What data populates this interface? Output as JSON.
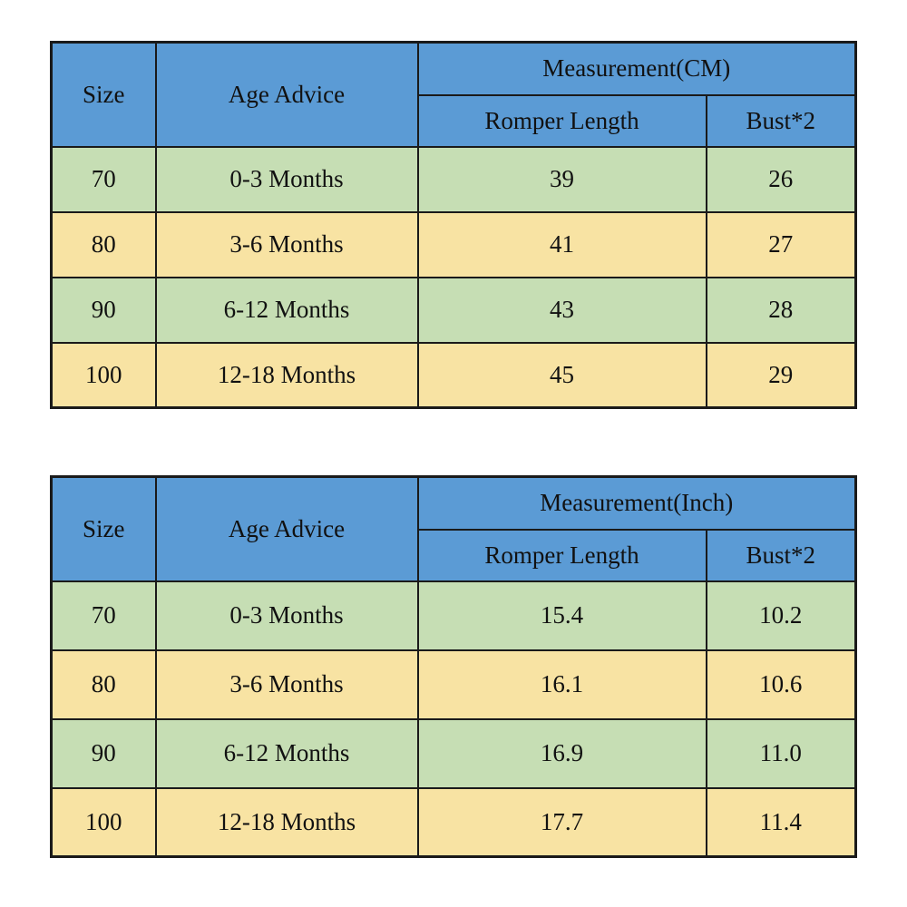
{
  "page": {
    "background": "#ffffff"
  },
  "colors": {
    "header_blue": "#5B9BD5",
    "size_yellow": "#FFFF00",
    "row_green": "#C6DEB4",
    "row_tan": "#F8E3A3",
    "border": "#1A1A1A",
    "text": "#111111"
  },
  "chart_data": [
    {
      "type": "table",
      "header": {
        "size": "Size",
        "age_advice": "Age Advice",
        "measurement_group": "Measurement(CM)",
        "sub_columns": [
          "Romper Length",
          "Bust*2"
        ]
      },
      "rows": [
        [
          "70",
          "0-3 Months",
          "39",
          "26"
        ],
        [
          "80",
          "3-6 Months",
          "41",
          "27"
        ],
        [
          "90",
          "6-12 Months",
          "43",
          "28"
        ],
        [
          "100",
          "12-18 Months",
          "45",
          "29"
        ]
      ]
    },
    {
      "type": "table",
      "header": {
        "size": "Size",
        "age_advice": "Age Advice",
        "measurement_group": "Measurement(Inch)",
        "sub_columns": [
          "Romper Length",
          "Bust*2"
        ]
      },
      "rows": [
        [
          "70",
          "0-3 Months",
          "15.4",
          "10.2"
        ],
        [
          "80",
          "3-6 Months",
          "16.1",
          "10.6"
        ],
        [
          "90",
          "6-12 Months",
          "16.9",
          "11.0"
        ],
        [
          "100",
          "12-18 Months",
          "17.7",
          "11.4"
        ]
      ]
    }
  ]
}
